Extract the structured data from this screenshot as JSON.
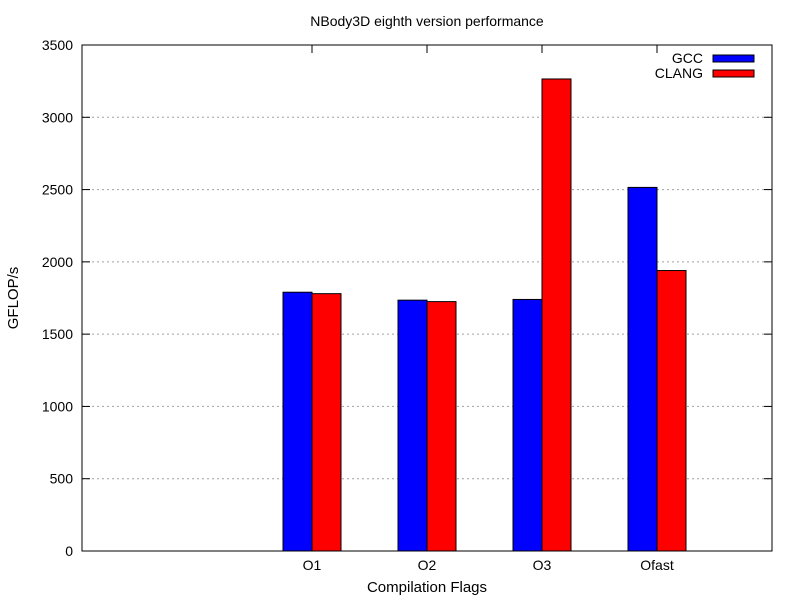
{
  "chart_data": {
    "type": "bar",
    "title": "NBody3D eighth version performance",
    "xlabel": "Compilation Flags",
    "ylabel": "GFLOP/s",
    "categories": [
      "O1",
      "O2",
      "O3",
      "Ofast"
    ],
    "series": [
      {
        "name": "GCC",
        "color": "#0000ff",
        "values": [
          1790,
          1735,
          1740,
          2515
        ]
      },
      {
        "name": "CLANG",
        "color": "#ff0000",
        "values": [
          1780,
          1725,
          3265,
          1940
        ]
      }
    ],
    "ylim": [
      0,
      3500
    ],
    "yticks": [
      0,
      500,
      1000,
      1500,
      2000,
      2500,
      3000,
      3500
    ],
    "grid": true,
    "legend_position": "top-right"
  }
}
